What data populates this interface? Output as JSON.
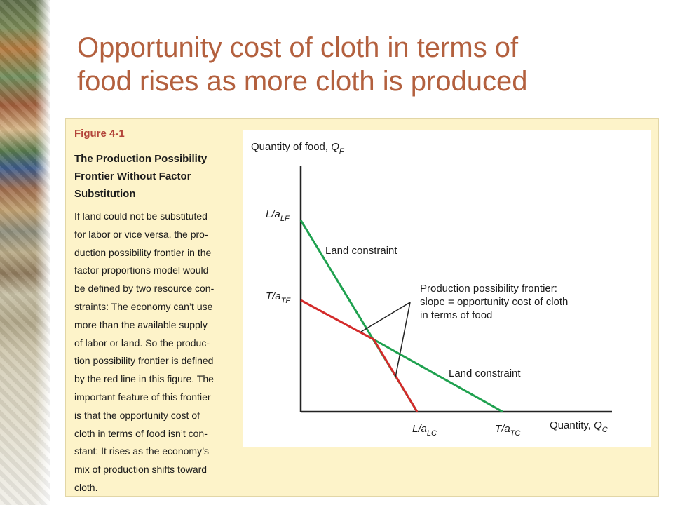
{
  "slide": {
    "title_line1": "Opportunity cost of cloth in terms of",
    "title_line2": "food rises as more cloth is produced"
  },
  "figure": {
    "label": "Figure 4-1",
    "heading": "The Production Possibility\nFrontier Without Factor\nSubstitution",
    "caption": "If land could not be substituted\nfor labor or vice versa, the pro-\nduction possibility frontier in the\nfactor proportions model would\nbe defined by two resource con-\nstraints: The economy can’t use\nmore than the available supply\nof labor or land. So the produc-\ntion possibility frontier is defined\nby the red line in this figure. The\nimportant feature of this frontier\nis that the opportunity cost of\ncloth in terms of food isn’t con-\nstant: It rises as the economy’s\nmix of production shifts toward\ncloth."
  },
  "diagram": {
    "y_axis": {
      "text": "Quantity of food, ",
      "var": "Q",
      "sub": "F"
    },
    "x_axis": {
      "text": "Quantity, ",
      "var": "Q",
      "sub": "C"
    },
    "ticks": {
      "y_labor": {
        "text": "L/a",
        "sub": "LF"
      },
      "y_land": {
        "text": "T/a",
        "sub": "TF"
      },
      "x_labor": {
        "text": "L/a",
        "sub": "LC"
      },
      "x_land": {
        "text": "T/a",
        "sub": "TC"
      }
    },
    "labels": {
      "constraint_upper": "Land constraint",
      "constraint_lower": "Land constraint",
      "ppf_line1": "Production possibility frontier:",
      "ppf_line2": "slope = opportunity cost of cloth",
      "ppf_line3": "in terms of food"
    },
    "colors": {
      "green_constraint": "#1fa14f",
      "red_frontier": "#d42a2a",
      "axis": "#222222"
    }
  }
}
